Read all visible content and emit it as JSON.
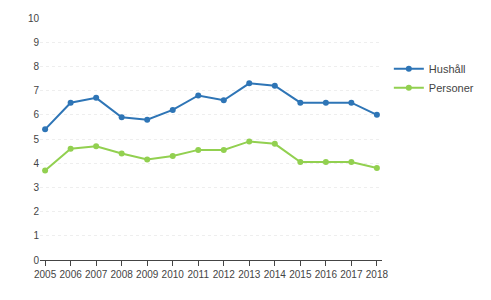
{
  "chart_data": {
    "type": "line",
    "x": [
      2005,
      2006,
      2007,
      2008,
      2009,
      2010,
      2011,
      2012,
      2013,
      2014,
      2015,
      2016,
      2017,
      2018
    ],
    "series": [
      {
        "name": "Hushåll",
        "color": "#2E75B6",
        "marker": "circle",
        "values": [
          5.4,
          6.5,
          6.7,
          5.9,
          5.8,
          6.2,
          6.8,
          6.6,
          7.3,
          7.2,
          6.5,
          6.5,
          6.5,
          6.0
        ]
      },
      {
        "name": "Personer",
        "color": "#92D050",
        "marker": "circle",
        "values": [
          3.7,
          4.6,
          4.7,
          4.4,
          4.15,
          4.3,
          4.55,
          4.55,
          4.9,
          4.8,
          4.05,
          4.05,
          4.05,
          3.8
        ]
      }
    ],
    "xlim": [
      2004.8,
      2018.2
    ],
    "xticks": [
      2005,
      2006,
      2007,
      2008,
      2009,
      2010,
      2011,
      2012,
      2013,
      2014,
      2015,
      2016,
      2017,
      2018
    ],
    "ylim": [
      0,
      10
    ],
    "yticks": [
      0,
      1,
      2,
      3,
      4,
      5,
      6,
      7,
      8,
      9,
      10
    ],
    "grid": "y",
    "legend": "right"
  }
}
